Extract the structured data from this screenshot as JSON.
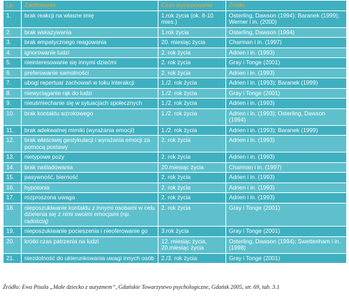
{
  "table": {
    "header": [
      "Lp.",
      "Zachowanie",
      "Czas występowania",
      "Źródło"
    ],
    "rows": [
      [
        "1.",
        "brak reakcji na własne imię",
        "1.rok życia (ok. 8-10 mies.)",
        "Osterling, Dawson (1994); Baranek (1999); Werner i in. (2000)"
      ],
      [
        "2.",
        "brak wskazywania",
        "1.rok życia",
        "Osterling, Dawson (1994)"
      ],
      [
        "3.",
        "brak empatycznego reagowania",
        "20. miesiąc życia",
        "Charman i in. (1997)"
      ],
      [
        "4.",
        "ignorowanie ludzi",
        "2. rok życia",
        "Adrien i in. (1993)"
      ],
      [
        "5.",
        "nieinteresowanie się innymi dziećmi",
        "2. rok życia",
        "Gray i Tonge (2001)"
      ],
      [
        "6.",
        "preferowanie samotności",
        "2. rok życia",
        "Adrien i in. (1993)"
      ],
      [
        "7.",
        "ubogi repertuar zachowań w toku interakcji",
        "1./2. rok życia",
        "Adrien i in. (1993); Baranek (1999)"
      ],
      [
        "8.",
        "niewyciąganie rąk do ludzi",
        "1./2. rok życia",
        "Gray i Tonge (2001)"
      ],
      [
        "9.",
        "nieuśmiechanie się w sytuacjach społecznych",
        "1./2. rok życia",
        "Adrien i in. (1993)"
      ],
      [
        "10.",
        "brak kontaktu wzrokowego",
        "1./2. rok życia",
        "Adrien i in. (1993); Osterling, Dawson (1994)"
      ],
      [
        "11.",
        "brak adekwatnej mimiki (wyrażania emocji)",
        "1./2. rok życia",
        "Adrien i in. (1993); Baranek (1999)"
      ],
      [
        "12.",
        "brak właściwej gestykulacji i wyrażania emocji za pomocą postawy",
        "2. rok życia",
        "Adrien i in. (1993)"
      ],
      [
        "13.",
        "nietypowe pozy",
        "2. rok życia",
        "Adrien i in. (1993)"
      ],
      [
        "14.",
        "brak naśladowania",
        "20.miesiąc życia",
        "Charman i in. (1997)"
      ],
      [
        "15.",
        "pasywność, bierność",
        "2. rok życia",
        "Adrien i in. (1993)"
      ],
      [
        "16.",
        "hypotonia",
        "2. rok życia",
        "Adrien i in. (1993)"
      ],
      [
        "17.",
        "rozproszona uwaga",
        "2. rok życia",
        "Adrien i in. (1993)"
      ],
      [
        "18.",
        "nieposzukiwanie kontaktu z innymi osobami w celu dzielenia się z nimi swoimi emocjami (np. radością)",
        "2. rok życia",
        "Gray i Tonge (2001)"
      ],
      [
        "19.",
        "nieposzukiwanie pocieszenia i nieoferowanie go",
        "3.rok życia",
        "Gray i Tonge (2001)"
      ],
      [
        "20.",
        "krótki czas patrzenia na ludzi",
        "12. miesiąc życia, 20.miesiąc życia",
        "Osterling, Dawson (1994); Swettenham i in. (1998)"
      ],
      [
        "21.",
        "niezdolność do ukierunkowania uwagi innych osób",
        "2./3. rok życia",
        "Gray i Tonge (2001)"
      ]
    ]
  },
  "caption": "Źródło: Ewa Pisula „Małe dziecko z autyzmem”, Gdańskie Towarzystwo psychologiczne, Gdańsk 2005, str. 69, tab. 3.1"
}
